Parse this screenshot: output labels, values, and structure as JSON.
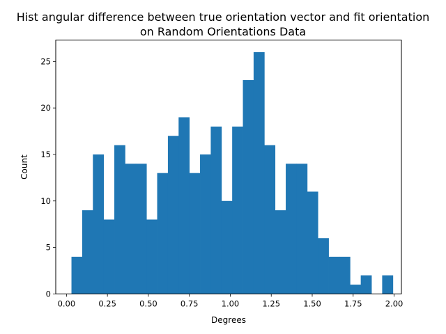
{
  "chart_data": {
    "type": "bar",
    "title_lines": [
      "Hist angular difference between true orientation vector and fit orientation",
      "on Random Orientations Data"
    ],
    "xlabel": "Degrees",
    "ylabel": "Count",
    "xlim": [
      -0.0654,
      2.0445
    ],
    "ylim": [
      0,
      27.3
    ],
    "xticks": [
      0.0,
      0.25,
      0.5,
      0.75,
      1.0,
      1.25,
      1.5,
      1.75,
      2.0
    ],
    "xtick_labels": [
      "0.00",
      "0.25",
      "0.50",
      "0.75",
      "1.00",
      "1.25",
      "1.50",
      "1.75",
      "2.00"
    ],
    "yticks": [
      0,
      5,
      10,
      15,
      20,
      25
    ],
    "ytick_labels": [
      "0",
      "5",
      "10",
      "15",
      "20",
      "25"
    ],
    "bar_color": "#1f77b4",
    "bin_start": 0.0305,
    "bin_width": 0.0654,
    "values": [
      4,
      9,
      15,
      8,
      16,
      14,
      14,
      8,
      13,
      17,
      19,
      13,
      15,
      18,
      10,
      18,
      23,
      26,
      16,
      9,
      14,
      14,
      11,
      6,
      4,
      4,
      1,
      2,
      0,
      2
    ],
    "grid": false,
    "legend": "none"
  }
}
